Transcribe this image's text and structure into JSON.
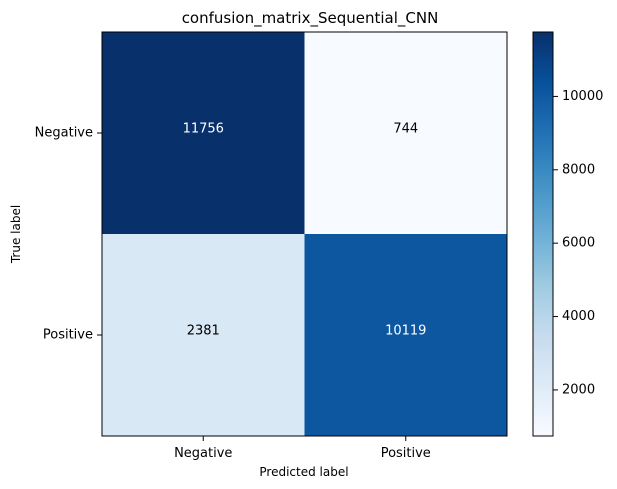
{
  "chart_data": {
    "type": "heatmap",
    "title": "confusion_matrix_Sequential_CNN",
    "xlabel": "Predicted label",
    "ylabel": "True label",
    "x_categories": [
      "Negative",
      "Positive"
    ],
    "y_categories": [
      "Negative",
      "Positive"
    ],
    "matrix": [
      [
        11756,
        744
      ],
      [
        2381,
        10119
      ]
    ],
    "colormap": "Blues",
    "colorbar": {
      "range": [
        744,
        11756
      ],
      "ticks": [
        2000,
        4000,
        6000,
        8000,
        10000
      ],
      "tick_labels": [
        "2000",
        "4000",
        "6000",
        "8000",
        "10000"
      ]
    },
    "cell_text_colors": {
      "dark_cell": "#ffffff",
      "light_cell": "#000000"
    },
    "grid": false
  }
}
